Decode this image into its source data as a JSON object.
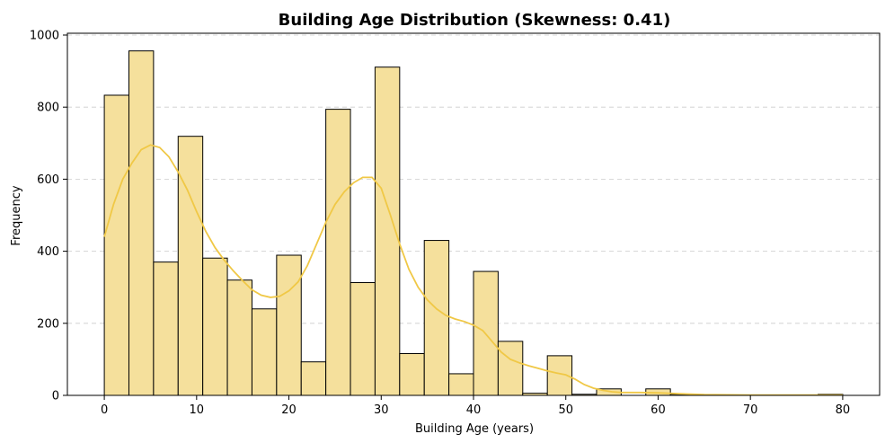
{
  "chart_data": {
    "type": "bar",
    "title": "Building Age Distribution (Skewness: 0.41)",
    "xlabel": "Building Age (years)",
    "ylabel": "Frequency",
    "xlim": [
      -4,
      84
    ],
    "ylim": [
      0,
      1005
    ],
    "xticks": [
      0,
      10,
      20,
      30,
      40,
      50,
      60,
      70,
      80
    ],
    "yticks": [
      0,
      200,
      400,
      600,
      800,
      1000
    ],
    "grid": "y",
    "bin_width": 2.667,
    "bins": [
      {
        "x0": 0.0,
        "value": 833
      },
      {
        "x0": 2.667,
        "value": 956
      },
      {
        "x0": 5.333,
        "value": 370
      },
      {
        "x0": 8.0,
        "value": 719
      },
      {
        "x0": 10.667,
        "value": 381
      },
      {
        "x0": 13.333,
        "value": 320
      },
      {
        "x0": 16.0,
        "value": 240
      },
      {
        "x0": 18.667,
        "value": 389
      },
      {
        "x0": 21.333,
        "value": 93
      },
      {
        "x0": 24.0,
        "value": 794
      },
      {
        "x0": 26.667,
        "value": 313
      },
      {
        "x0": 29.333,
        "value": 911
      },
      {
        "x0": 32.0,
        "value": 116
      },
      {
        "x0": 34.667,
        "value": 430
      },
      {
        "x0": 37.333,
        "value": 60
      },
      {
        "x0": 40.0,
        "value": 344
      },
      {
        "x0": 42.667,
        "value": 150
      },
      {
        "x0": 45.333,
        "value": 6
      },
      {
        "x0": 48.0,
        "value": 110
      },
      {
        "x0": 50.667,
        "value": 3
      },
      {
        "x0": 53.333,
        "value": 18
      },
      {
        "x0": 56.0,
        "value": 0
      },
      {
        "x0": 58.667,
        "value": 18
      },
      {
        "x0": 61.333,
        "value": 3
      },
      {
        "x0": 64.0,
        "value": 0
      },
      {
        "x0": 66.667,
        "value": 0
      },
      {
        "x0": 69.333,
        "value": 0
      },
      {
        "x0": 72.0,
        "value": 0
      },
      {
        "x0": 74.667,
        "value": 0
      },
      {
        "x0": 77.333,
        "value": 3
      }
    ],
    "kde": {
      "x": [
        0,
        1,
        2,
        3,
        4,
        5,
        6,
        7,
        8,
        9,
        10,
        11,
        12,
        13,
        14,
        15,
        16,
        17,
        18,
        19,
        20,
        21,
        22,
        23,
        24,
        25,
        26,
        27,
        28,
        29,
        30,
        31,
        32,
        33,
        34,
        35,
        36,
        37,
        38,
        39,
        40,
        41,
        42,
        43,
        44,
        45,
        46,
        47,
        48,
        49,
        50,
        51,
        52,
        53,
        54,
        55,
        56,
        58,
        60,
        62,
        65,
        70,
        75,
        80
      ],
      "y": [
        440,
        530,
        600,
        645,
        682,
        695,
        688,
        662,
        620,
        570,
        510,
        455,
        410,
        375,
        345,
        318,
        293,
        278,
        272,
        275,
        290,
        315,
        360,
        420,
        480,
        530,
        565,
        590,
        605,
        605,
        575,
        500,
        420,
        350,
        300,
        265,
        240,
        222,
        212,
        205,
        195,
        180,
        150,
        120,
        100,
        90,
        82,
        75,
        68,
        62,
        57,
        45,
        30,
        20,
        14,
        10,
        8,
        8,
        7,
        5,
        2,
        1,
        1,
        1
      ]
    }
  }
}
